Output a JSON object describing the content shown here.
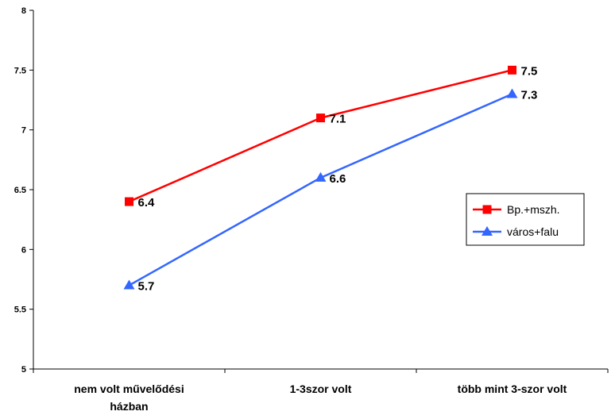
{
  "chart_data": {
    "type": "line",
    "title": "",
    "xlabel": "",
    "ylabel": "",
    "categories": [
      "nem volt művelődési házban",
      "1-3szor volt",
      "több mint 3-szor volt"
    ],
    "ylim": [
      5,
      8
    ],
    "yticks": [
      "5",
      "5.5",
      "6",
      "6.5",
      "7",
      "7.5",
      "8"
    ],
    "grid": false,
    "legend_position": "right",
    "series": [
      {
        "name": "Bp.+mszh.",
        "values": [
          6.4,
          7.1,
          7.5
        ],
        "labels": [
          "6.4",
          "7.1",
          "7.5"
        ],
        "color": "#ff0000",
        "marker": "square"
      },
      {
        "name": "város+falu",
        "values": [
          5.7,
          6.6,
          7.3
        ],
        "labels": [
          "5.7",
          "6.6",
          "7.3"
        ],
        "color": "#3366ff",
        "marker": "triangle"
      }
    ]
  }
}
